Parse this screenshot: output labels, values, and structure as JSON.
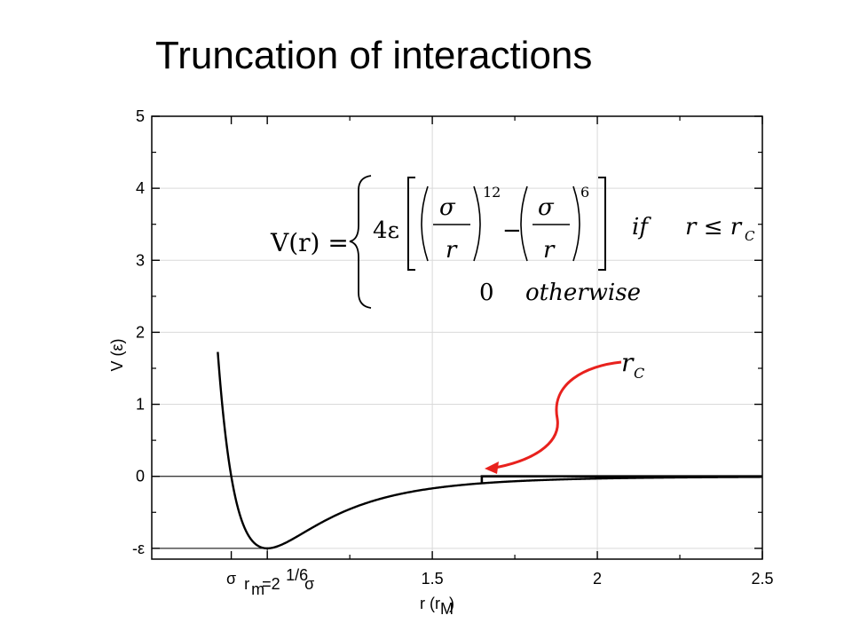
{
  "slide": {
    "title": "Truncation of interactions"
  },
  "chart_data": {
    "type": "line",
    "xlabel": "r (r_M)",
    "ylabel": "V (ε)",
    "xlim": [
      0.65,
      2.5
    ],
    "ylim": [
      -1.15,
      5
    ],
    "x_ticks": [
      {
        "value": 0.8909,
        "label": "σ"
      },
      {
        "value": 1.0,
        "label": "r_m=2^{1/6}σ"
      },
      {
        "value": 1.5,
        "label": "1.5"
      },
      {
        "value": 2.0,
        "label": "2"
      },
      {
        "value": 2.5,
        "label": "2.5"
      }
    ],
    "y_ticks": [
      {
        "value": -1,
        "label": "-ε"
      },
      {
        "value": 0,
        "label": "0"
      },
      {
        "value": 1,
        "label": "1"
      },
      {
        "value": 2,
        "label": "2"
      },
      {
        "value": 3,
        "label": "3"
      },
      {
        "value": 4,
        "label": "4"
      },
      {
        "value": 5,
        "label": "5"
      }
    ],
    "grid": true,
    "cutoff_r": 1.65,
    "series": [
      {
        "function": "lennard-jones",
        "color": "#000000"
      },
      {
        "function": "truncated-lennard-jones",
        "color": "#000000"
      }
    ],
    "annotations": {
      "cutoff_label": "r_C",
      "arrow_color": "#e8211d"
    },
    "equation": {
      "lhs": "V(r) =",
      "coef": "4ε",
      "sigma": "σ",
      "r": "r",
      "power12": "12",
      "power6": "6",
      "minus": "−",
      "cond_if": "if",
      "cond_rel": "r ≤ r",
      "cond_sub": "C",
      "zero": "0",
      "otherwise": "otherwise"
    }
  }
}
